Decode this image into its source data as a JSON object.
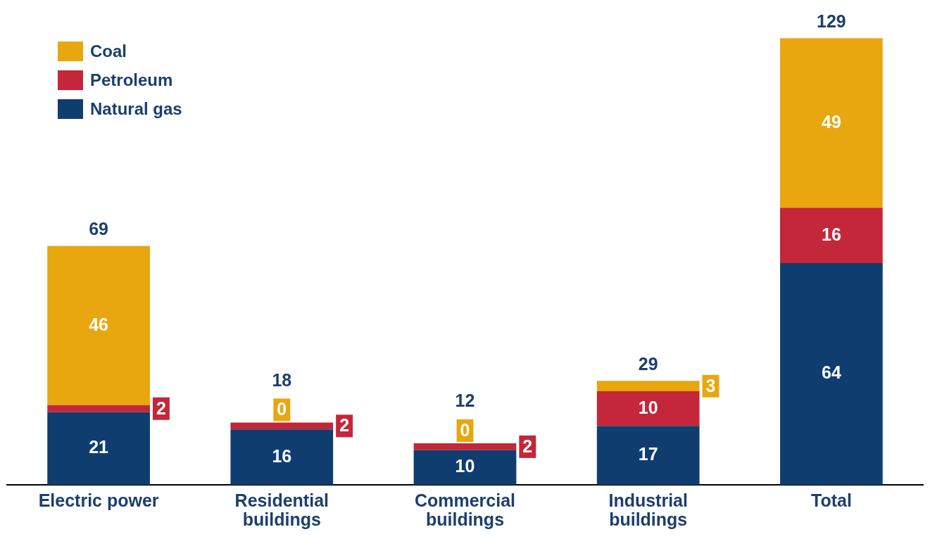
{
  "chart_data": {
    "type": "bar",
    "stacked": true,
    "categories": [
      "Electric power",
      "Residential buildings",
      "Commercial buildings",
      "Industrial buildings",
      "Total"
    ],
    "series": [
      {
        "name": "Natural gas",
        "color": "#0f3d70",
        "values": [
          21,
          16,
          10,
          17,
          64
        ]
      },
      {
        "name": "Petroleum",
        "color": "#c4263a",
        "values": [
          2,
          2,
          2,
          10,
          16
        ]
      },
      {
        "name": "Coal",
        "color": "#e8a70f",
        "values": [
          46,
          0,
          0,
          3,
          49
        ]
      }
    ],
    "totals": [
      "69",
      "18",
      "12",
      "29",
      "129"
    ],
    "data_labels": true,
    "tick_labels": "x",
    "grid": false,
    "legend": "top left"
  }
}
